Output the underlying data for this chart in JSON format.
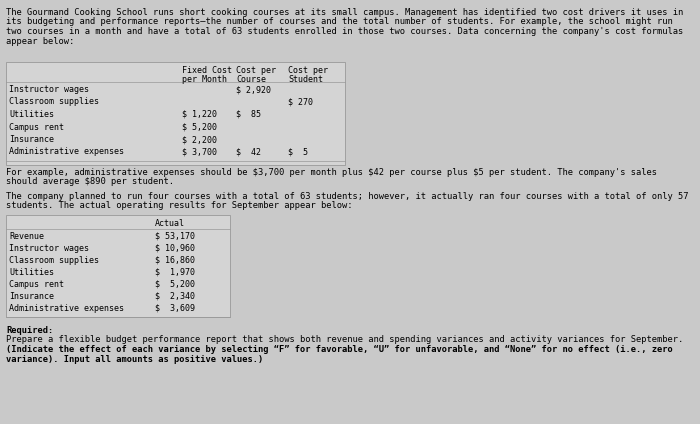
{
  "bg_color": "#c9c9c9",
  "title_text": "The Gourmand Cooking School runs short cooking courses at its small campus. Management has identified two cost drivers it uses in\nits budgeting and performance reports—the number of courses and the total number of students. For example, the school might run\ntwo courses in a month and have a total of 63 students enrolled in those two courses. Data concerning the company's cost formulas\nappear below:",
  "table1_rows": [
    [
      "Instructor wages",
      "",
      "$ 2,920",
      ""
    ],
    [
      "Classroom supplies",
      "",
      "",
      "$ 270"
    ],
    [
      "Utilities",
      "$ 1,220",
      "$  85",
      ""
    ],
    [
      "Campus rent",
      "$ 5,200",
      "",
      ""
    ],
    [
      "Insurance",
      "$ 2,200",
      "",
      ""
    ],
    [
      "Administrative expenses",
      "$ 3,700",
      "$  42",
      "$  5"
    ]
  ],
  "note_text": "For example, administrative expenses should be $3,700 per month plus $42 per course plus $5 per student. The company's sales\nshould average $890 per student.",
  "scenario_text": "The company planned to run four courses with a total of 63 students; however, it actually ran four courses with a total of only 57\nstudents. The actual operating results for September appear below:",
  "table2_rows": [
    [
      "Revenue",
      "$ 53,170"
    ],
    [
      "Instructor wages",
      "$ 10,960"
    ],
    [
      "Classroom supplies",
      "$ 16,860"
    ],
    [
      "Utilities",
      "$  1,970"
    ],
    [
      "Campus rent",
      "$  5,200"
    ],
    [
      "Insurance",
      "$  2,340"
    ],
    [
      "Administrative expenses",
      "$  3,609"
    ]
  ],
  "required_bold": "Required:",
  "required_normal": "Prepare a flexible budget performance report that shows both revenue and spending variances and activity variances for September.\n(Indicate the effect of each variance by selecting “F” for favorable, “U” for unfavorable, and “None” for no effect (i.e., zero\nvariance). Input all amounts as positive values.)",
  "required_bold2": "(Indicate the effect of each variance by selecting “F” for favorable, “U” for unfavorable, and “None” for no effect (i.e., zero\nvariance). Input all amounts as positive values.)"
}
